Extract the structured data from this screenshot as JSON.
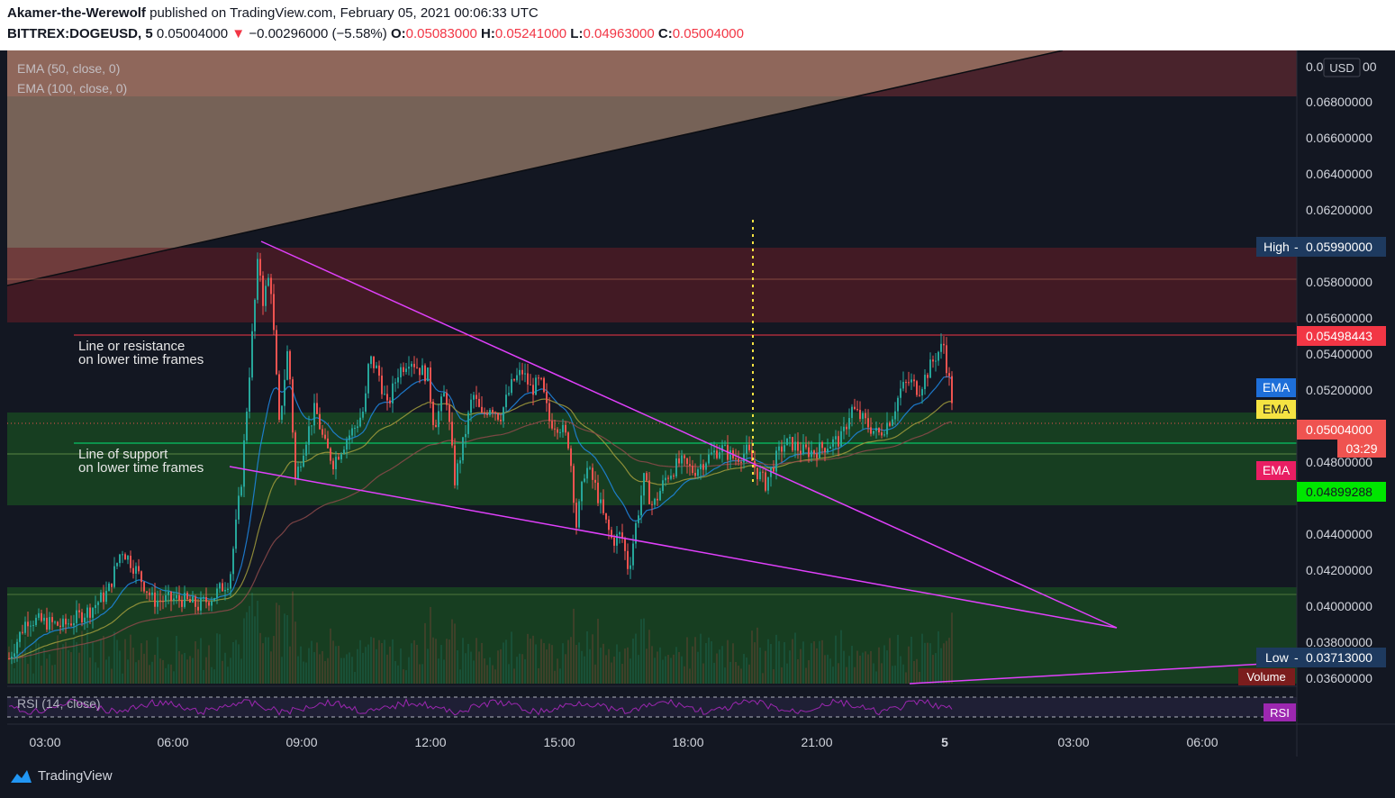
{
  "header": {
    "author": "Akamer-the-Werewolf",
    "published": "published on TradingView.com, February 05, 2021 00:06:33 UTC",
    "symbol": "BITTREX:DOGEUSD, 5",
    "last": "0.05004000",
    "change": "−0.00296000 (−5.58%)",
    "o_label": "O:",
    "o": "0.05083000",
    "h_label": "H:",
    "h": "0.05241000",
    "l_label": "L:",
    "l": "0.04963000",
    "c_label": "C:",
    "c": "0.05004000"
  },
  "indicators": {
    "ema50": "EMA (50, close, 0)",
    "ema100": "EMA (100, close, 0)",
    "rsi": "RSI (14, close)"
  },
  "annotations": {
    "resistance_line1": "Line or resistance",
    "resistance_line2": "on lower time frames",
    "support_line1": "Line of support",
    "support_line2": "on lower time frames"
  },
  "axis": {
    "currency": "USD",
    "price_ticks": [
      "0.06800000",
      "0.06600000",
      "0.06400000",
      "0.06200000",
      "0.05800000",
      "0.05600000",
      "0.05400000",
      "0.05200000",
      "0.04800000",
      "0.04400000",
      "0.04200000",
      "0.04000000",
      "0.03800000",
      "0.03600000"
    ],
    "time_ticks": [
      "03:00",
      "06:00",
      "09:00",
      "12:00",
      "15:00",
      "18:00",
      "21:00",
      "5",
      "03:00",
      "06:00"
    ]
  },
  "labels": {
    "high_tag": "High",
    "high_value": "0.05990000",
    "low_tag": "Low",
    "low_value": "0.03713000",
    "resistance_price": "0.05498443",
    "last_price": "0.05004000",
    "countdown": "03:29",
    "support_price": "0.04899288",
    "ema_tag": "EMA",
    "volume_tag": "Volume",
    "rsi_tag": "RSI"
  },
  "colors": {
    "background": "#131722",
    "up": "#26a69a",
    "down": "#ef5350",
    "ema_blue": "#2962ff",
    "ema_yellow": "#f5e342",
    "ema_pink": "#e91e63",
    "trendline": "#e040fb",
    "resistance": "#f23645",
    "support": "#00e676"
  },
  "footer": {
    "brand": "TradingView"
  },
  "chart_data": {
    "type": "candlestick",
    "interval": "5m",
    "y_range": [
      0.0355,
      0.0705
    ],
    "high": 0.0599,
    "low": 0.03713,
    "resistance_level": 0.05498443,
    "support_level": 0.04899288,
    "last": 0.05004,
    "path_keypoints": [
      [
        0,
        0.0371
      ],
      [
        20,
        0.0393
      ],
      [
        60,
        0.0389
      ],
      [
        90,
        0.0398
      ],
      [
        110,
        0.0408
      ],
      [
        125,
        0.0432
      ],
      [
        140,
        0.0421
      ],
      [
        160,
        0.0403
      ],
      [
        190,
        0.0404
      ],
      [
        210,
        0.04
      ],
      [
        228,
        0.0406
      ],
      [
        245,
        0.0415
      ],
      [
        258,
        0.047
      ],
      [
        270,
        0.055
      ],
      [
        277,
        0.0595
      ],
      [
        282,
        0.057
      ],
      [
        290,
        0.0585
      ],
      [
        300,
        0.05
      ],
      [
        310,
        0.0545
      ],
      [
        318,
        0.047
      ],
      [
        328,
        0.049
      ],
      [
        340,
        0.051
      ],
      [
        350,
        0.049
      ],
      [
        360,
        0.048
      ],
      [
        375,
        0.0493
      ],
      [
        385,
        0.05
      ],
      [
        395,
        0.051
      ],
      [
        400,
        0.0538
      ],
      [
        410,
        0.053
      ],
      [
        420,
        0.051
      ],
      [
        432,
        0.053
      ],
      [
        445,
        0.0538
      ],
      [
        455,
        0.0532
      ],
      [
        465,
        0.0528
      ],
      [
        472,
        0.05
      ],
      [
        485,
        0.052
      ],
      [
        495,
        0.047
      ],
      [
        505,
        0.0492
      ],
      [
        515,
        0.0518
      ],
      [
        525,
        0.0505
      ],
      [
        535,
        0.0512
      ],
      [
        545,
        0.0505
      ],
      [
        560,
        0.0525
      ],
      [
        570,
        0.053
      ],
      [
        580,
        0.052
      ],
      [
        590,
        0.0525
      ],
      [
        600,
        0.0503
      ],
      [
        612,
        0.05
      ],
      [
        622,
        0.049
      ],
      [
        630,
        0.0445
      ],
      [
        640,
        0.0478
      ],
      [
        650,
        0.0468
      ],
      [
        660,
        0.045
      ],
      [
        670,
        0.0436
      ],
      [
        680,
        0.044
      ],
      [
        688,
        0.042
      ],
      [
        696,
        0.0445
      ],
      [
        705,
        0.047
      ],
      [
        715,
        0.0455
      ],
      [
        730,
        0.0472
      ],
      [
        745,
        0.048
      ],
      [
        760,
        0.0475
      ],
      [
        775,
        0.0482
      ],
      [
        790,
        0.0488
      ],
      [
        805,
        0.0482
      ],
      [
        820,
        0.0486
      ],
      [
        830,
        0.0475
      ],
      [
        840,
        0.0468
      ],
      [
        850,
        0.048
      ],
      [
        860,
        0.049
      ],
      [
        870,
        0.049
      ],
      [
        880,
        0.0486
      ],
      [
        895,
        0.0486
      ],
      [
        910,
        0.049
      ],
      [
        925,
        0.0493
      ],
      [
        935,
        0.051
      ],
      [
        945,
        0.0505
      ],
      [
        955,
        0.05
      ],
      [
        965,
        0.0495
      ],
      [
        980,
        0.0505
      ],
      [
        990,
        0.052
      ],
      [
        1000,
        0.0525
      ],
      [
        1010,
        0.052
      ],
      [
        1020,
        0.053
      ],
      [
        1030,
        0.054
      ],
      [
        1038,
        0.0545
      ],
      [
        1042,
        0.053
      ],
      [
        1046,
        0.052
      ],
      [
        1050,
        0.05
      ]
    ]
  }
}
